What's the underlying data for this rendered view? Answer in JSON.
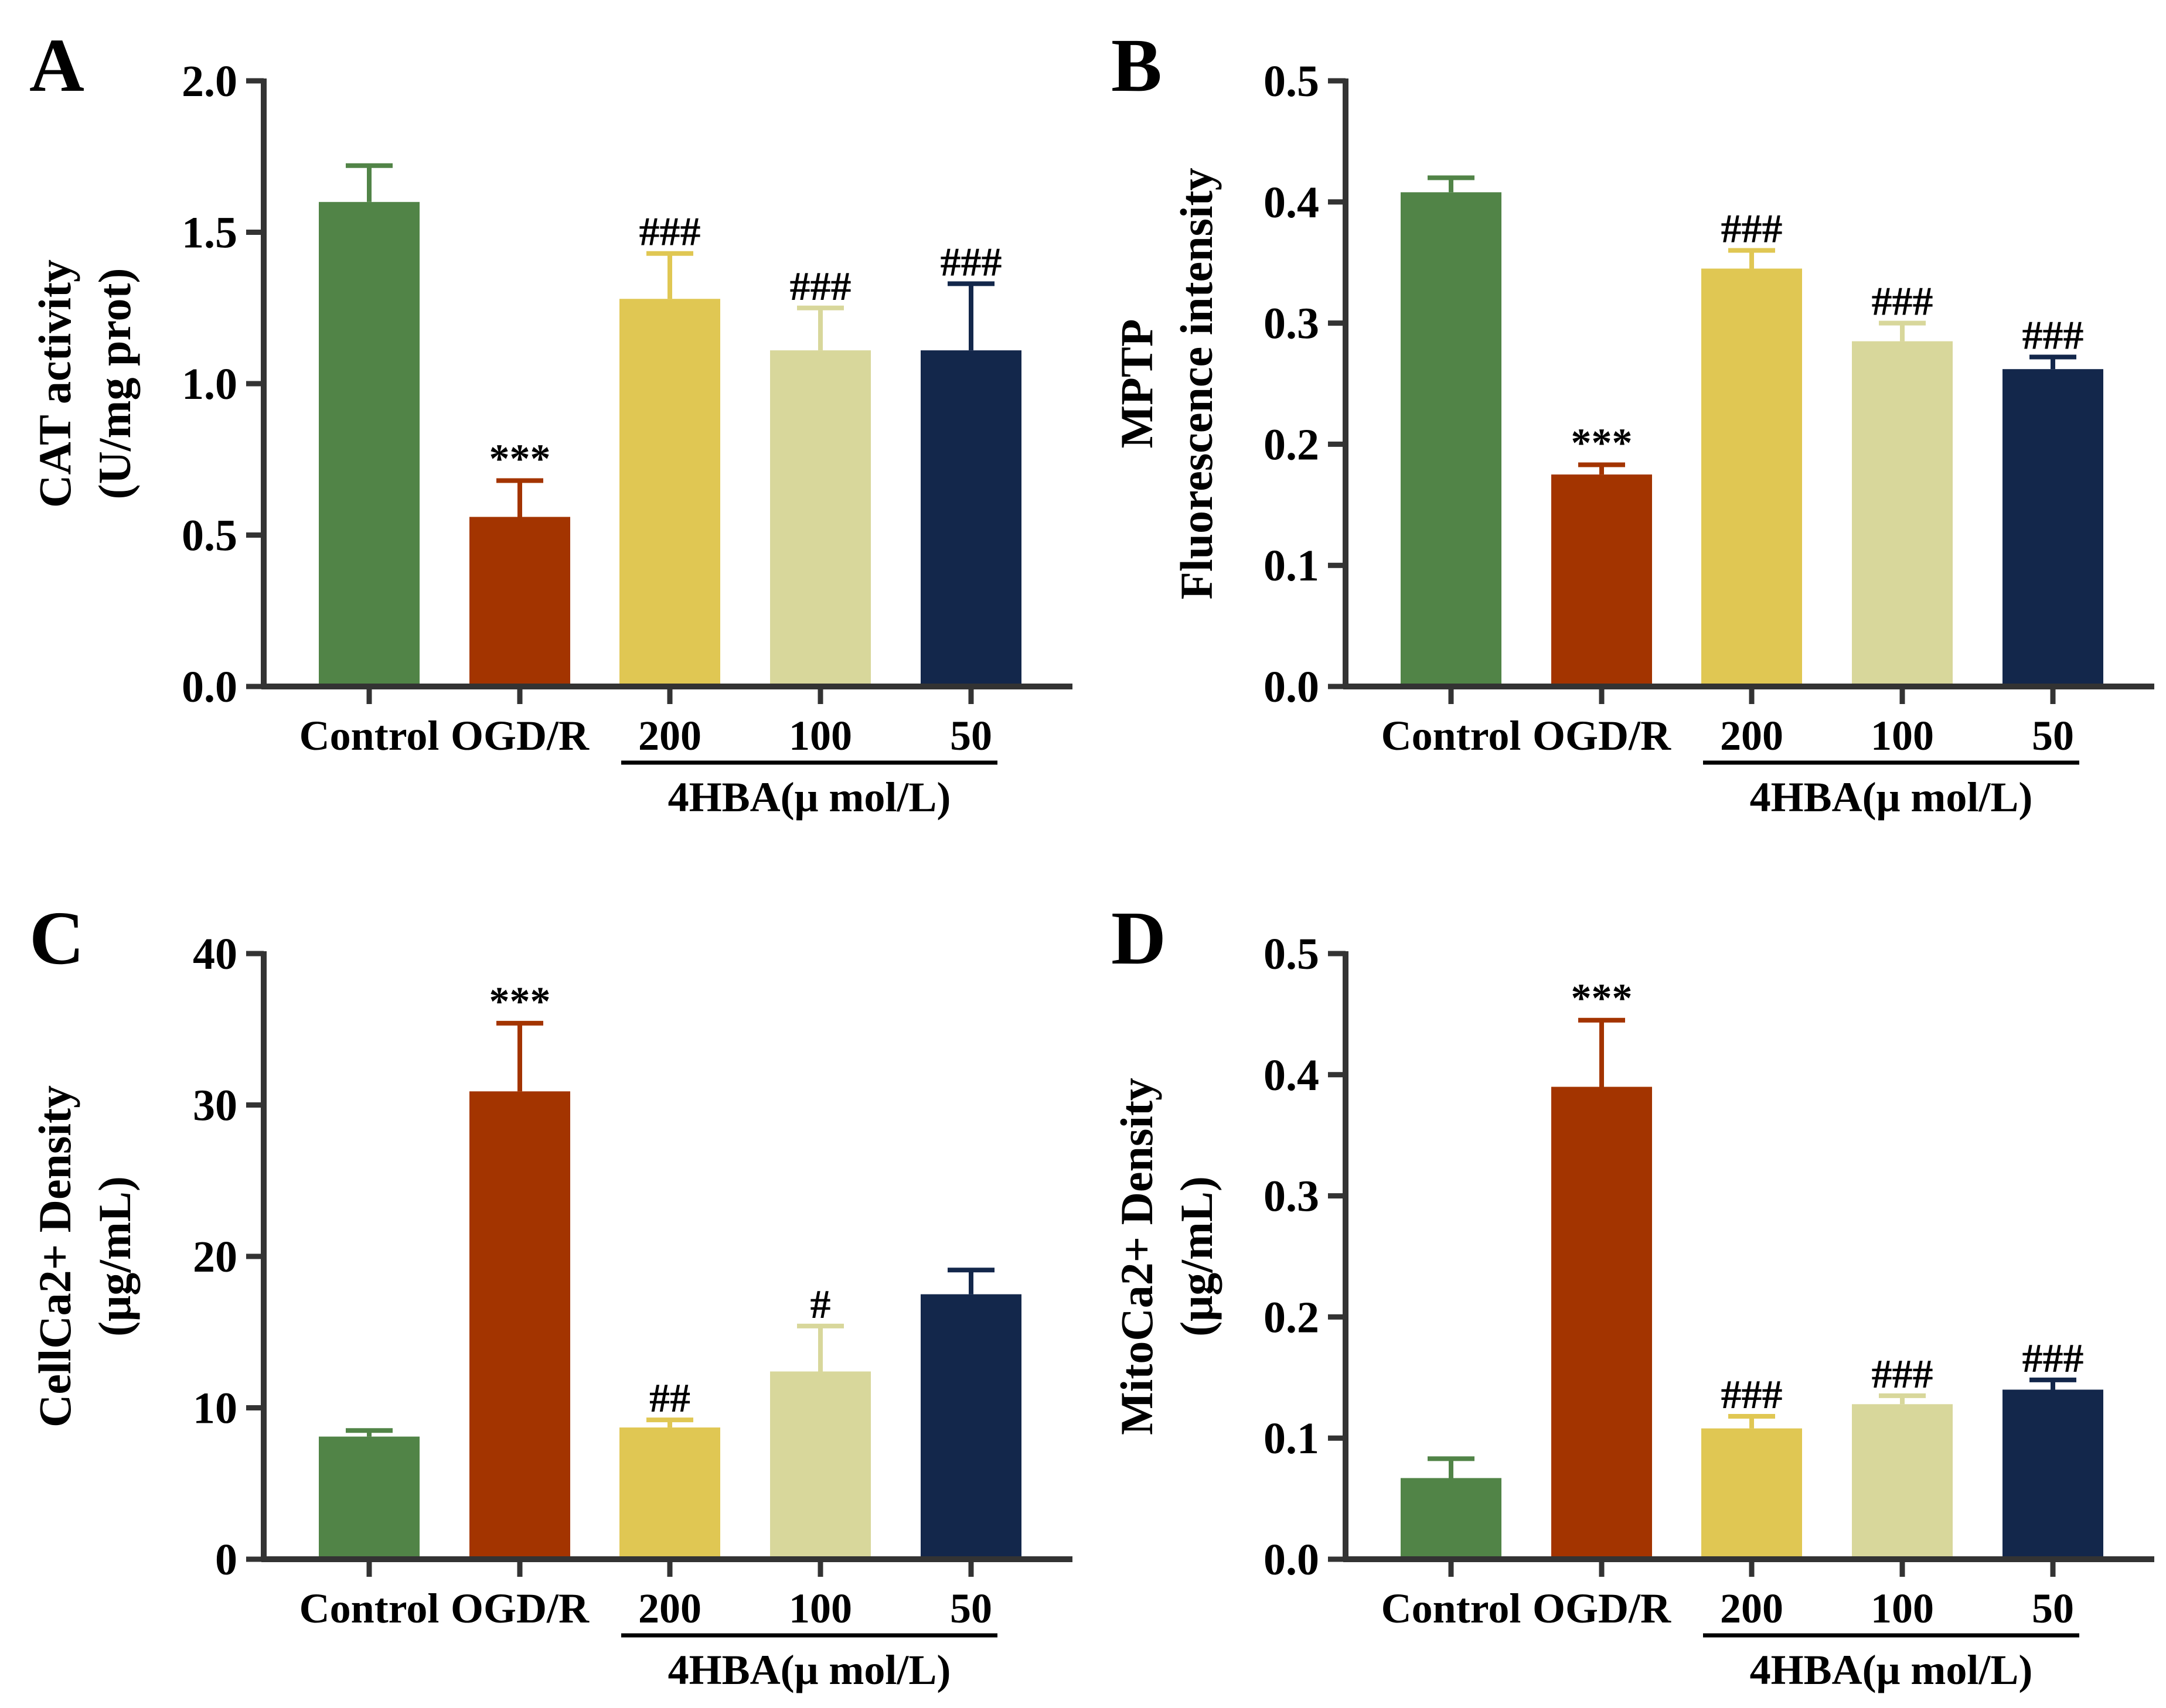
{
  "colors": {
    "control": "#518447",
    "ogdr": "#a33400",
    "d200": "#e0c753",
    "d100": "#d8d79b",
    "d50": "#13274b",
    "axis": "#333333"
  },
  "chart_data": [
    {
      "panel": "A",
      "type": "bar",
      "ylabel_lines": [
        "CAT activity",
        "(U/mg prot)"
      ],
      "yticks": [
        "0.0",
        "0.5",
        "1.0",
        "1.5",
        "2.0"
      ],
      "ylim": [
        0,
        2.0
      ],
      "categories": [
        "Control",
        "OGD/R",
        "200",
        "100",
        "50"
      ],
      "values": [
        1.6,
        0.56,
        1.28,
        1.11,
        1.11
      ],
      "errors": [
        0.12,
        0.12,
        0.15,
        0.14,
        0.22
      ],
      "significance": [
        "",
        "***",
        "###",
        "###",
        "###"
      ],
      "group_label": "4HBA(μ mol/L)"
    },
    {
      "panel": "B",
      "type": "bar",
      "ylabel_lines": [
        "MPTP",
        "Fluorescence intensity"
      ],
      "yticks": [
        "0.0",
        "0.1",
        "0.2",
        "0.3",
        "0.4",
        "0.5"
      ],
      "ylim": [
        0,
        0.5
      ],
      "categories": [
        "Control",
        "OGD/R",
        "200",
        "100",
        "50"
      ],
      "values": [
        0.408,
        0.175,
        0.345,
        0.285,
        0.262
      ],
      "errors": [
        0.012,
        0.008,
        0.015,
        0.015,
        0.01
      ],
      "significance": [
        "",
        "***",
        "###",
        "###",
        "###"
      ],
      "group_label": "4HBA(μ mol/L)"
    },
    {
      "panel": "C",
      "type": "bar",
      "ylabel_lines": [
        "CellCa2+ Density",
        "(μg/mL)"
      ],
      "yticks": [
        "0",
        "10",
        "20",
        "30",
        "40"
      ],
      "ylim": [
        0,
        40
      ],
      "categories": [
        "Control",
        "OGD/R",
        "200",
        "100",
        "50"
      ],
      "values": [
        8.1,
        30.9,
        8.7,
        12.4,
        17.5
      ],
      "errors": [
        0.4,
        4.5,
        0.5,
        3.0,
        1.6
      ],
      "significance": [
        "",
        "***",
        "##",
        "#",
        ""
      ],
      "group_label": "4HBA(μ mol/L)"
    },
    {
      "panel": "D",
      "type": "bar",
      "ylabel_lines": [
        "MitoCa2+ Density",
        "(μg/mL)"
      ],
      "yticks": [
        "0.0",
        "0.1",
        "0.2",
        "0.3",
        "0.4",
        "0.5"
      ],
      "ylim": [
        0,
        0.5
      ],
      "categories": [
        "Control",
        "OGD/R",
        "200",
        "100",
        "50"
      ],
      "values": [
        0.067,
        0.39,
        0.108,
        0.128,
        0.14
      ],
      "errors": [
        0.016,
        0.055,
        0.01,
        0.007,
        0.008
      ],
      "significance": [
        "",
        "***",
        "###",
        "###",
        "###"
      ],
      "group_label": "4HBA(μ mol/L)"
    }
  ]
}
